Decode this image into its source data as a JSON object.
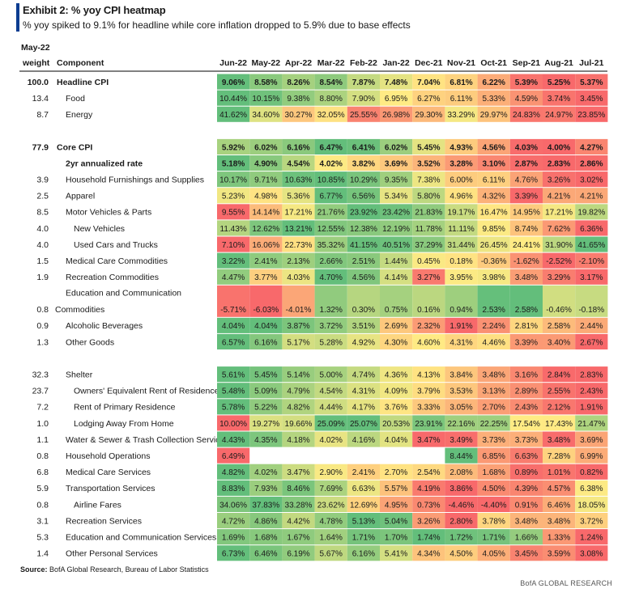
{
  "header": {
    "title": "Exhibit 2: % yoy CPI heatmap",
    "subtitle": "% yoy spiked to 9.1% for headline while core inflation dropped to 5.9% due to base effects"
  },
  "footer": {
    "source_label": "Source:",
    "source_text": "BofA Global Research, Bureau of Labor Statistics",
    "brand": "BofA GLOBAL RESEARCH"
  },
  "colors": {
    "low": "#f8696b",
    "mid": "#ffeb84",
    "high": "#63be7b"
  },
  "chart_data": {
    "type": "heatmap",
    "title": "Exhibit 2: % yoy CPI heatmap",
    "weight_header": [
      "May-22",
      "weight"
    ],
    "component_header": "Component",
    "months": [
      "Jun-22",
      "May-22",
      "Apr-22",
      "Mar-22",
      "Feb-22",
      "Jan-22",
      "Dec-21",
      "Nov-21",
      "Oct-21",
      "Sep-21",
      "Aug-21",
      "Jul-21"
    ],
    "color_scale": "per-row, red (low) - yellow (mid) - green (high)",
    "rows": [
      {
        "weight": "100.0",
        "name": "Headline CPI",
        "bold": true,
        "indent": 0,
        "values": [
          "9.06%",
          "8.58%",
          "8.26%",
          "8.54%",
          "7.87%",
          "7.48%",
          "7.04%",
          "6.81%",
          "6.22%",
          "5.39%",
          "5.25%",
          "5.37%"
        ]
      },
      {
        "weight": "13.4",
        "name": "Food",
        "indent": 1,
        "values": [
          "10.44%",
          "10.15%",
          "9.38%",
          "8.80%",
          "7.90%",
          "6.95%",
          "6.27%",
          "6.11%",
          "5.33%",
          "4.59%",
          "3.74%",
          "3.45%"
        ]
      },
      {
        "weight": "8.7",
        "name": "Energy",
        "indent": 1,
        "values": [
          "41.62%",
          "34.60%",
          "30.27%",
          "32.05%",
          "25.55%",
          "26.98%",
          "29.30%",
          "33.29%",
          "29.97%",
          "24.83%",
          "24.97%",
          "23.85%"
        ]
      },
      {
        "spacer": true
      },
      {
        "weight": "77.9",
        "name": "Core CPI",
        "bold": true,
        "indent": 0,
        "values": [
          "5.92%",
          "6.02%",
          "6.16%",
          "6.47%",
          "6.41%",
          "6.02%",
          "5.45%",
          "4.93%",
          "4.56%",
          "4.03%",
          "4.00%",
          "4.27%"
        ]
      },
      {
        "weight": "",
        "name": "2yr annualized rate",
        "bold": true,
        "indent": 1,
        "values": [
          "5.18%",
          "4.90%",
          "4.54%",
          "4.02%",
          "3.82%",
          "3.69%",
          "3.52%",
          "3.28%",
          "3.10%",
          "2.87%",
          "2.83%",
          "2.86%"
        ]
      },
      {
        "weight": "3.9",
        "name": "Household Furnishings and Supplies",
        "indent": 1,
        "values": [
          "10.17%",
          "9.71%",
          "10.63%",
          "10.85%",
          "10.29%",
          "9.35%",
          "7.38%",
          "6.00%",
          "6.11%",
          "4.76%",
          "3.26%",
          "3.02%"
        ]
      },
      {
        "weight": "2.5",
        "name": "Apparel",
        "indent": 1,
        "values": [
          "5.23%",
          "4.98%",
          "5.36%",
          "6.77%",
          "6.56%",
          "5.34%",
          "5.80%",
          "4.96%",
          "4.32%",
          "3.39%",
          "4.21%",
          "4.21%"
        ]
      },
      {
        "weight": "8.5",
        "name": "Motor Vehicles & Parts",
        "indent": 1,
        "values": [
          "9.55%",
          "14.14%",
          "17.21%",
          "21.76%",
          "23.92%",
          "23.42%",
          "21.83%",
          "19.17%",
          "16.47%",
          "14.95%",
          "17.21%",
          "19.82%"
        ]
      },
      {
        "weight": "4.0",
        "name": "New Vehicles",
        "indent": 2,
        "values": [
          "11.43%",
          "12.62%",
          "13.21%",
          "12.55%",
          "12.38%",
          "12.19%",
          "11.78%",
          "11.11%",
          "9.85%",
          "8.74%",
          "7.62%",
          "6.36%"
        ]
      },
      {
        "weight": "4.0",
        "name": "Used Cars and Trucks",
        "indent": 2,
        "values": [
          "7.10%",
          "16.06%",
          "22.73%",
          "35.32%",
          "41.15%",
          "40.51%",
          "37.29%",
          "31.44%",
          "26.45%",
          "24.41%",
          "31.90%",
          "41.65%"
        ]
      },
      {
        "weight": "1.5",
        "name": "Medical Care Commodities",
        "indent": 1,
        "values": [
          "3.22%",
          "2.41%",
          "2.13%",
          "2.66%",
          "2.51%",
          "1.44%",
          "0.45%",
          "0.18%",
          "-0.36%",
          "-1.62%",
          "-2.52%",
          "-2.10%"
        ]
      },
      {
        "weight": "1.9",
        "name": "Recreation Commodities",
        "indent": 1,
        "values": [
          "4.47%",
          "3.77%",
          "4.03%",
          "4.70%",
          "4.56%",
          "4.14%",
          "3.27%",
          "3.95%",
          "3.98%",
          "3.48%",
          "3.29%",
          "3.17%"
        ]
      },
      {
        "weight": "0.8",
        "name": "Education and Communication",
        "name2": "Commodities",
        "indent": 1,
        "tall": true,
        "values": [
          "-5.71%",
          "-6.03%",
          "-4.01%",
          "1.32%",
          "0.30%",
          "0.75%",
          "0.16%",
          "0.94%",
          "2.53%",
          "2.58%",
          "-0.46%",
          "-0.18%"
        ]
      },
      {
        "weight": "0.9",
        "name": "Alcoholic Beverages",
        "indent": 1,
        "values": [
          "4.04%",
          "4.04%",
          "3.87%",
          "3.72%",
          "3.51%",
          "2.69%",
          "2.32%",
          "1.91%",
          "2.24%",
          "2.81%",
          "2.58%",
          "2.44%"
        ]
      },
      {
        "weight": "1.3",
        "name": "Other Goods",
        "indent": 1,
        "values": [
          "6.57%",
          "6.16%",
          "5.17%",
          "5.28%",
          "4.92%",
          "4.30%",
          "4.60%",
          "4.31%",
          "4.46%",
          "3.39%",
          "3.40%",
          "2.67%"
        ]
      },
      {
        "spacer": true
      },
      {
        "weight": "32.3",
        "name": "Shelter",
        "indent": 1,
        "values": [
          "5.61%",
          "5.45%",
          "5.14%",
          "5.00%",
          "4.74%",
          "4.36%",
          "4.13%",
          "3.84%",
          "3.48%",
          "3.16%",
          "2.84%",
          "2.83%"
        ]
      },
      {
        "weight": "23.7",
        "name": "Owners' Equivalent Rent of Residences",
        "indent": 2,
        "values": [
          "5.48%",
          "5.09%",
          "4.79%",
          "4.54%",
          "4.31%",
          "4.09%",
          "3.79%",
          "3.53%",
          "3.13%",
          "2.89%",
          "2.55%",
          "2.43%"
        ]
      },
      {
        "weight": "7.2",
        "name": "Rent of Primary Residence",
        "indent": 2,
        "values": [
          "5.78%",
          "5.22%",
          "4.82%",
          "4.44%",
          "4.17%",
          "3.76%",
          "3.33%",
          "3.05%",
          "2.70%",
          "2.43%",
          "2.12%",
          "1.91%"
        ]
      },
      {
        "weight": "1.0",
        "name": "Lodging Away From Home",
        "indent": 2,
        "values": [
          "10.00%",
          "19.27%",
          "19.66%",
          "25.09%",
          "25.07%",
          "20.53%",
          "23.91%",
          "22.16%",
          "22.25%",
          "17.54%",
          "17.43%",
          "21.47%"
        ]
      },
      {
        "weight": "1.1",
        "name": "Water & Sewer & Trash Collection Services",
        "indent": 1,
        "values": [
          "4.43%",
          "4.35%",
          "4.18%",
          "4.02%",
          "4.16%",
          "4.04%",
          "3.47%",
          "3.49%",
          "3.73%",
          "3.73%",
          "3.48%",
          "3.69%"
        ]
      },
      {
        "weight": "0.8",
        "name": "Household Operations",
        "indent": 1,
        "values": [
          "6.49%",
          "",
          "",
          "",
          "",
          "",
          "",
          "8.44%",
          "6.85%",
          "6.63%",
          "7.28%",
          "6.99%"
        ]
      },
      {
        "weight": "6.8",
        "name": "Medical Care Services",
        "indent": 1,
        "values": [
          "4.82%",
          "4.02%",
          "3.47%",
          "2.90%",
          "2.41%",
          "2.70%",
          "2.54%",
          "2.08%",
          "1.68%",
          "0.89%",
          "1.01%",
          "0.82%"
        ]
      },
      {
        "weight": "5.9",
        "name": "Transportation Services",
        "indent": 1,
        "values": [
          "8.83%",
          "7.93%",
          "8.46%",
          "7.69%",
          "6.63%",
          "5.57%",
          "4.19%",
          "3.86%",
          "4.50%",
          "4.39%",
          "4.57%",
          "6.38%"
        ]
      },
      {
        "weight": "0.8",
        "name": "Airline Fares",
        "indent": 2,
        "values": [
          "34.06%",
          "37.83%",
          "33.28%",
          "23.62%",
          "12.69%",
          "4.95%",
          "0.73%",
          "-4.46%",
          "-4.40%",
          "0.91%",
          "6.46%",
          "18.05%"
        ]
      },
      {
        "weight": "3.1",
        "name": "Recreation Services",
        "indent": 1,
        "values": [
          "4.72%",
          "4.86%",
          "4.42%",
          "4.78%",
          "5.13%",
          "5.04%",
          "3.26%",
          "2.80%",
          "3.78%",
          "3.48%",
          "3.48%",
          "3.72%"
        ]
      },
      {
        "weight": "5.3",
        "name": "Education and Communication Services",
        "indent": 1,
        "values": [
          "1.69%",
          "1.68%",
          "1.67%",
          "1.64%",
          "1.71%",
          "1.70%",
          "1.74%",
          "1.72%",
          "1.71%",
          "1.66%",
          "1.33%",
          "1.24%"
        ]
      },
      {
        "weight": "1.4",
        "name": "Other Personal Services",
        "indent": 1,
        "values": [
          "6.73%",
          "6.46%",
          "6.19%",
          "5.67%",
          "6.16%",
          "5.41%",
          "4.34%",
          "4.50%",
          "4.05%",
          "3.45%",
          "3.59%",
          "3.08%"
        ]
      }
    ]
  }
}
